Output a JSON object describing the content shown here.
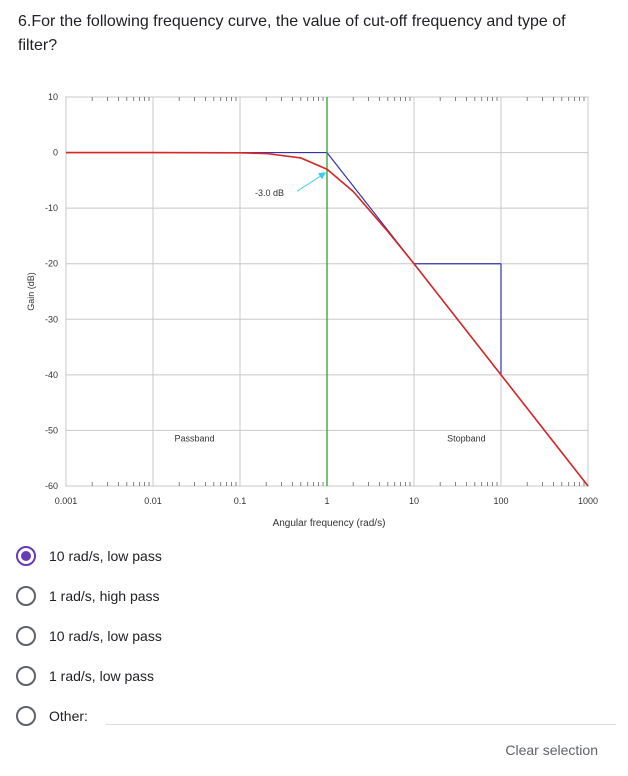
{
  "question": {
    "text": "6.For the following frequency curve, the value of cut-off frequency and type of filter?"
  },
  "chart_data": {
    "type": "line",
    "xscale": "log",
    "xlim": [
      0.001,
      1000
    ],
    "ylim": [
      -60,
      10
    ],
    "xlabel": "Angular frequency (rad/s)",
    "ylabel": "Gain (dB)",
    "xticks": [
      "0.001",
      "0.01",
      "0.1",
      "1",
      "10",
      "100",
      "1000"
    ],
    "yticks": [
      "10",
      "0",
      "-10",
      "-20",
      "-30",
      "-40",
      "-50",
      "-60"
    ],
    "grid": true,
    "series": [
      {
        "color": "#d62728",
        "x": [
          0.001,
          0.01,
          0.1,
          0.2,
          0.5,
          1,
          2,
          5,
          10,
          100,
          1000
        ],
        "y": [
          0,
          0,
          -0.04,
          -0.17,
          -0.97,
          -3.0,
          -7.0,
          -14.2,
          -20.0,
          -40.0,
          -60.0
        ]
      }
    ],
    "cutoff_marker": {
      "x": 1,
      "color": "#2ca02c"
    },
    "asymptote": {
      "color": "#3333aa",
      "points": [
        [
          0.001,
          0
        ],
        [
          1,
          0
        ],
        [
          10,
          -20
        ],
        [
          1000,
          -60
        ]
      ]
    },
    "slope_triangle": {
      "x1": 10,
      "x2": 100,
      "y1": -20,
      "y2": -40,
      "color": "#3333aa"
    },
    "annotations": {
      "db_label": "-3.0  dB",
      "passband": "Passband",
      "stopband": "Stopband"
    }
  },
  "options": [
    {
      "label": "10 rad/s,  low pass",
      "checked": true
    },
    {
      "label": "1 rad/s,  high pass",
      "checked": false
    },
    {
      "label": "10 rad/s, low pass",
      "checked": false
    },
    {
      "label": "1 rad/s, low pass",
      "checked": false
    },
    {
      "label": "Other:",
      "checked": false
    }
  ],
  "clear_label": "Clear selection",
  "colors": {
    "accent": "#673ab7",
    "curve": "#d62728",
    "cutoff": "#2ca02c",
    "arrow": "#33ccee"
  }
}
